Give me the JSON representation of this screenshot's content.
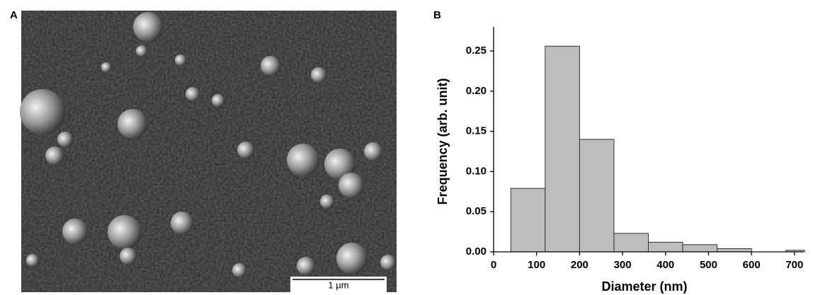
{
  "image_panel": {
    "label": "A",
    "scale_bar": "1 µm"
  },
  "chart_data": {
    "type": "histogram",
    "label": "B",
    "xlabel": "Diameter (nm)",
    "ylabel": "Frequency (arb. unit)",
    "bins": [
      40,
      120,
      200,
      280,
      360,
      440,
      520,
      600,
      680,
      760
    ],
    "values": [
      0.079,
      0.256,
      0.14,
      0.023,
      0.012,
      0.009,
      0.004,
      0,
      0.002
    ],
    "color": "#bdbdbd",
    "xlim": [
      0,
      720
    ],
    "xticks": [
      0,
      100,
      200,
      300,
      400,
      500,
      600,
      700
    ],
    "ylim": [
      0,
      0.28
    ],
    "yticks": [
      {
        "value": 0,
        "label": "0.00"
      },
      {
        "value": 0.05,
        "label": "0.05"
      },
      {
        "value": 0.1,
        "label": "0.10"
      },
      {
        "value": 0.15,
        "label": "0.15"
      },
      {
        "value": 0.2,
        "label": "0.20"
      },
      {
        "value": 0.25,
        "label": "0.25"
      }
    ],
    "grid": false
  }
}
